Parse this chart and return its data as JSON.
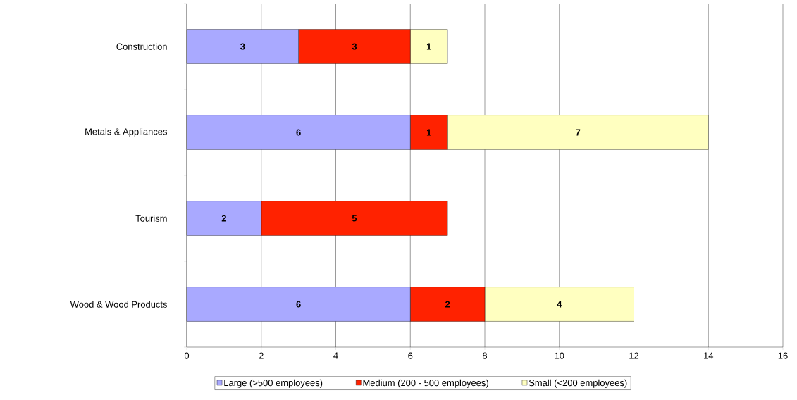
{
  "chart_data": {
    "type": "bar",
    "orientation": "horizontal",
    "stacked": true,
    "categories": [
      "Construction",
      "Metals & Appliances",
      "Tourism",
      "Wood & Wood Products"
    ],
    "series": [
      {
        "name": "Large (>500 employees)",
        "color": "#a9a9ff",
        "values": [
          3,
          6,
          2,
          6
        ]
      },
      {
        "name": "Medium (200 - 500 employees)",
        "color": "#ff2200",
        "values": [
          3,
          1,
          5,
          2
        ]
      },
      {
        "name": "Small (<200 employees)",
        "color": "#ffffc0",
        "values": [
          1,
          7,
          null,
          4
        ]
      }
    ],
    "xlim": [
      0,
      16
    ],
    "xticks": [
      0,
      2,
      4,
      6,
      8,
      10,
      12,
      14,
      16
    ],
    "grid": "x",
    "legend": "bottom",
    "data_labels": true
  }
}
